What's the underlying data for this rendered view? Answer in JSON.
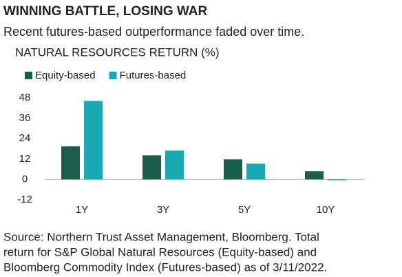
{
  "chart_data": {
    "type": "bar",
    "title": "WINNING BATTLE, LOSING WAR",
    "subtitle": "Recent futures-based outperformance faded over time.",
    "chart_title": "NATURAL RESOURCES RETURN (%)",
    "categories": [
      "1Y",
      "3Y",
      "5Y",
      "10Y"
    ],
    "series": [
      {
        "name": "Equity-based",
        "color": "#1b5e4b",
        "values": [
          19.5,
          14.2,
          11.8,
          4.9
        ]
      },
      {
        "name": "Futures-based",
        "color": "#1aa9b3",
        "values": [
          46.2,
          17.0,
          9.3,
          -0.5
        ]
      }
    ],
    "ylim": [
      -12,
      48
    ],
    "yticks": [
      -12,
      0,
      12,
      24,
      36,
      48
    ],
    "grid": false,
    "legend": "top-left",
    "source": [
      "Source: Northern Trust Asset Management, Bloomberg. Total",
      "return for S&P Global Natural Resources (Equity-based) and",
      "Bloomberg Commodity Index (Futures-based) as of 3/11/2022."
    ]
  }
}
